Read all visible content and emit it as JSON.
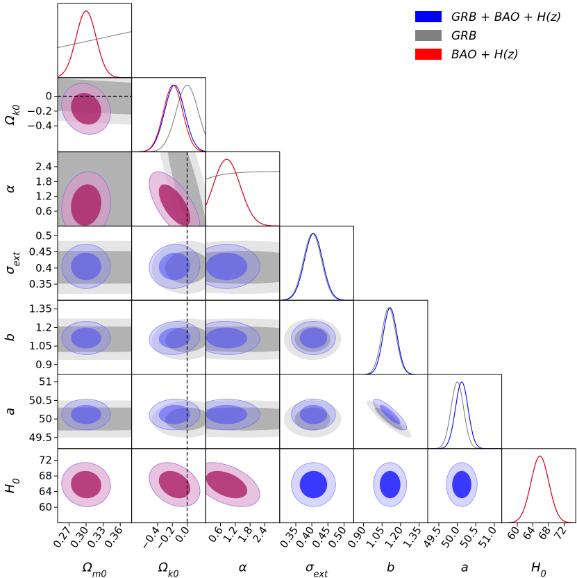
{
  "chart_data": {
    "type": "corner",
    "parameters": [
      {
        "key": "om",
        "label": "Ω",
        "sub": "m0",
        "range": [
          0.25,
          0.38
        ],
        "ticks": [
          "0.27",
          "0.30",
          "0.33",
          "0.36"
        ]
      },
      {
        "key": "ok",
        "label": "Ω",
        "sub": "k0",
        "range": [
          -0.75,
          0.25
        ],
        "ticks": [
          "−0.4",
          "−0.2",
          "0.0"
        ],
        "yticks": [
          "0",
          "−0.2",
          "−0.4"
        ],
        "reference": 0
      },
      {
        "key": "alpha",
        "label": "α",
        "sub": "",
        "range": [
          0.0,
          3.0
        ],
        "ticks": [
          "0.6",
          "1.2",
          "1.8",
          "2.4"
        ]
      },
      {
        "key": "sig",
        "label": "σ",
        "sub": "ext",
        "range": [
          0.3,
          0.53
        ],
        "ticks": [
          "0.35",
          "0.40",
          "0.45",
          "0.50"
        ],
        "yticks": [
          "0.5",
          "0.45",
          "0.4",
          "0.35"
        ]
      },
      {
        "key": "b",
        "label": "b",
        "sub": "",
        "range": [
          0.82,
          1.42
        ],
        "ticks": [
          "0.90",
          "1.05",
          "1.20",
          "1.35"
        ],
        "yticks": [
          "1.35",
          "1.2",
          "1.05",
          "0.9"
        ]
      },
      {
        "key": "a",
        "label": "a",
        "sub": "",
        "range": [
          49.2,
          51.2
        ],
        "ticks": [
          "49.5",
          "50.0",
          "50.5",
          "51.0"
        ],
        "yticks": [
          "51",
          "50.5",
          "50",
          "49.5"
        ]
      },
      {
        "key": "h0",
        "label": "H",
        "sub": "0",
        "range": [
          56,
          75
        ],
        "ticks": [
          "60",
          "64",
          "68",
          "72"
        ]
      }
    ],
    "series": [
      {
        "name": "GRB + BAO + H(z)",
        "color": "#0000ff"
      },
      {
        "name": "GRB",
        "color": "#808080"
      },
      {
        "name": "BAO + H(z)",
        "color": "#ff0000"
      }
    ],
    "marginals": {
      "om": {
        "joint": [
          0.3,
          0.0175
        ],
        "bao": [
          0.3,
          0.0175
        ],
        "grb": "linear-rise"
      },
      "ok": {
        "joint": [
          -0.17,
          0.135
        ],
        "bao": [
          -0.19,
          0.13
        ],
        "grb": [
          0.0,
          0.15
        ]
      },
      "alpha": {
        "joint": [
          0.85,
          0.55
        ],
        "bao": [
          0.85,
          0.55
        ],
        "grb": "linear-rise"
      },
      "sig": {
        "joint": [
          0.405,
          0.028
        ],
        "bao": null,
        "grb": [
          0.402,
          0.028
        ]
      },
      "b": {
        "joint": [
          1.115,
          0.055
        ],
        "bao": null,
        "grb": [
          1.105,
          0.057
        ]
      },
      "a": {
        "joint": [
          50.12,
          0.17
        ],
        "bao": null,
        "grb": [
          50.0,
          0.17
        ]
      },
      "h0": {
        "joint": [
          65.8,
          2.3
        ],
        "bao": [
          65.8,
          2.3
        ],
        "grb": null
      }
    }
  },
  "legend": {
    "items": [
      {
        "label": "GRB + BAO + H(z)",
        "color": "#0000ff"
      },
      {
        "label": "GRB",
        "color": "#808080"
      },
      {
        "label": "BAO + H(z)",
        "color": "#ff0000"
      }
    ]
  }
}
